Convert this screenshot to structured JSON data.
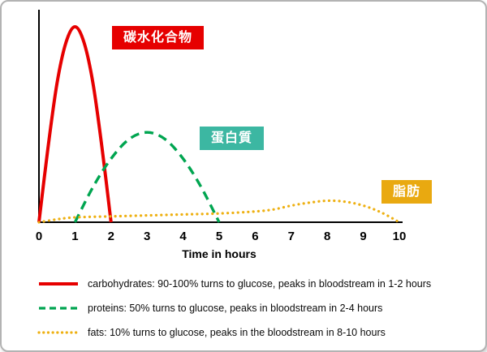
{
  "chart_data": {
    "type": "line",
    "title": "",
    "xlabel": "Time in hours",
    "ylabel": "",
    "xlim": [
      0,
      10
    ],
    "ylim": [
      0,
      105
    ],
    "x_ticks": [
      "0",
      "1",
      "2",
      "3",
      "4",
      "5",
      "6",
      "7",
      "8",
      "9",
      "10"
    ],
    "grid": false,
    "legend_position": "bottom",
    "series": [
      {
        "name": "carbohydrates",
        "label_cn": "碳水化合物",
        "color": "#e60000",
        "line_style": "solid",
        "peak_hours": "1-2",
        "points": [
          [
            0,
            0
          ],
          [
            0.25,
            38
          ],
          [
            0.5,
            71
          ],
          [
            0.75,
            92
          ],
          [
            1,
            100
          ],
          [
            1.25,
            92
          ],
          [
            1.5,
            71
          ],
          [
            1.75,
            38
          ],
          [
            2,
            0
          ]
        ]
      },
      {
        "name": "proteins",
        "label_cn": "蛋白質",
        "color": "#00a550",
        "line_style": "dashed",
        "peak_hours": "2-4",
        "points": [
          [
            1,
            0
          ],
          [
            1.5,
            18
          ],
          [
            2,
            32.5
          ],
          [
            2.5,
            42.5
          ],
          [
            3,
            46
          ],
          [
            3.5,
            42.5
          ],
          [
            4,
            32.5
          ],
          [
            4.5,
            18
          ],
          [
            5,
            0
          ]
        ]
      },
      {
        "name": "fats",
        "label_cn": "脂肪",
        "color": "#eeb011",
        "line_style": "dotted",
        "peak_hours": "8-10",
        "points": [
          [
            0,
            0
          ],
          [
            0.5,
            1.5
          ],
          [
            1,
            2.5
          ],
          [
            2,
            3
          ],
          [
            3,
            3.5
          ],
          [
            4,
            4
          ],
          [
            5,
            4.5
          ],
          [
            6,
            5.5
          ],
          [
            6.5,
            6.5
          ],
          [
            7,
            8.5
          ],
          [
            7.5,
            10
          ],
          [
            8,
            11
          ],
          [
            8.5,
            10.5
          ],
          [
            9,
            8.5
          ],
          [
            9.5,
            5
          ],
          [
            10,
            0
          ]
        ]
      }
    ]
  },
  "annotations": [
    {
      "text": "碳水化合物",
      "bg": "#e60000",
      "fg": "#ffffff"
    },
    {
      "text": "蛋白質",
      "bg": "#3cb7a2",
      "fg": "#ffffff"
    },
    {
      "text": "脂肪",
      "bg": "#e9a910",
      "fg": "#ffffff"
    }
  ],
  "legend": [
    {
      "text": "carbohydrates:  90-100% turns to glucose, peaks in bloodstream in 1-2 hours",
      "color": "#e60000",
      "style": "solid"
    },
    {
      "text": "proteins:  50% turns to glucose, peaks in bloodstream in 2-4 hours",
      "color": "#00a550",
      "style": "dashed"
    },
    {
      "text": "fats:  10% turns to glucose, peaks in the bloodstream in 8-10 hours",
      "color": "#eeb011",
      "style": "dotted"
    }
  ]
}
